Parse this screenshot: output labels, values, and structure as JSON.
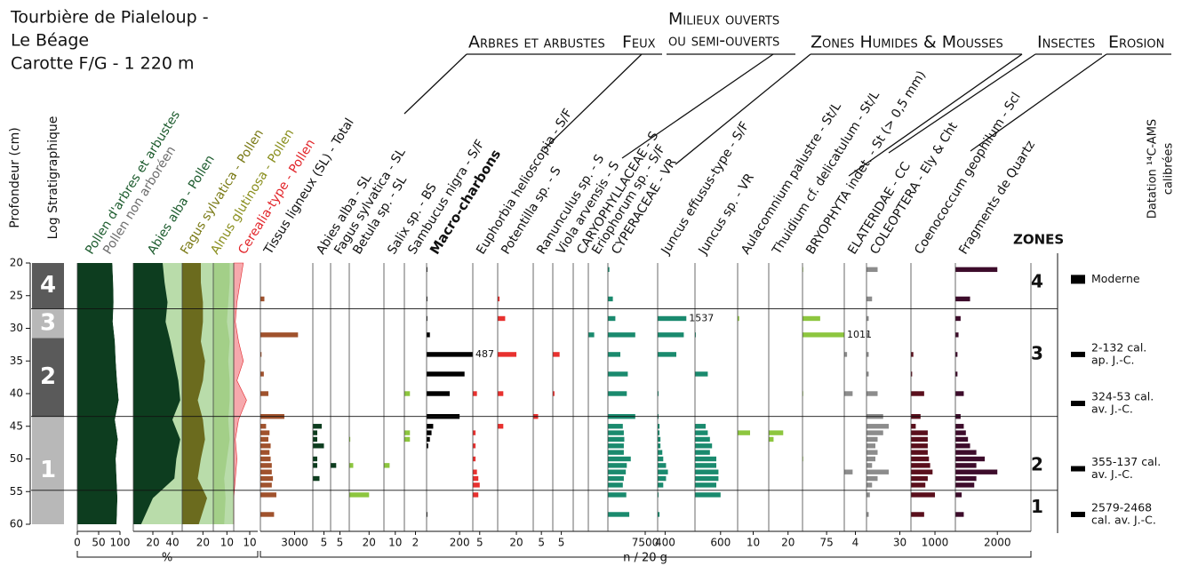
{
  "header": {
    "title": [
      "Tourbière de Pialeloup -",
      "Le Béage",
      "Carotte F/G - 1 220 m"
    ]
  },
  "groups": [
    [
      "Arbres et arbustes"
    ],
    [
      "Feux"
    ],
    [
      "Milieux ouverts",
      "ou semi-ouverts"
    ],
    [
      "Zones Humides & Mousses"
    ],
    [
      "Insectes"
    ],
    [
      "Erosion"
    ]
  ],
  "depth_axis": {
    "label": "Profondeur (cm)",
    "ylim": [
      20,
      60
    ],
    "yticks": [
      20,
      25,
      30,
      35,
      40,
      45,
      50,
      55,
      60
    ]
  },
  "log": {
    "label": "Log Stratigraphique",
    "units": [
      {
        "label": "4",
        "top": 20,
        "bottom": 27,
        "color": "#5a5a5a"
      },
      {
        "label": "3",
        "top": 27,
        "bottom": 31.5,
        "color": "#b8b8b8"
      },
      {
        "label": "2",
        "top": 31.5,
        "bottom": 43.5,
        "color": "#5a5a5a"
      },
      {
        "label": "1",
        "top": 43.5,
        "bottom": 60,
        "color": "#b8b8b8"
      }
    ]
  },
  "x_units": {
    "percent": "%",
    "counts": "n / 20 g"
  },
  "zones": {
    "label": "ZONES",
    "boundaries": [
      27,
      43.5,
      54.8
    ],
    "items": [
      {
        "label": "4",
        "depth": 23
      },
      {
        "label": "3",
        "depth": 34
      },
      {
        "label": "2",
        "depth": 51
      },
      {
        "label": "1",
        "depth": 57.5
      }
    ]
  },
  "dating": {
    "label": [
      "Datation ¹⁴C-AMS",
      "calibrées"
    ],
    "items": [
      {
        "depth": 22.5,
        "label": [
          "Moderne"
        ]
      },
      {
        "depth": 34,
        "label": [
          "2-132 cal.",
          "ap. J.-C."
        ]
      },
      {
        "depth": 41.5,
        "label": [
          "324-53 cal.",
          "av. J.-C."
        ]
      },
      {
        "depth": 51.5,
        "label": [
          "355-137 cal.",
          "av. J.-C."
        ]
      },
      {
        "depth": 58.5,
        "label": [
          "2579-2468",
          "cal. av. J.-C."
        ]
      }
    ]
  },
  "sample_depths": [
    21,
    25.5,
    28.5,
    31,
    34,
    37,
    40,
    43.5,
    45,
    46,
    47,
    48,
    49,
    50,
    51,
    52,
    53,
    54,
    55.5,
    58.5
  ],
  "chart_data": [
    {
      "type": "area",
      "stacked": true,
      "xlim": [
        0,
        100
      ],
      "xticks": [
        0,
        50,
        100
      ],
      "y": [
        20,
        23,
        26,
        29,
        32,
        35,
        38,
        41,
        44,
        47,
        50,
        53,
        56,
        60
      ],
      "series": [
        {
          "name": "Pollen d'arbres et arbustes",
          "color": "#0d3d1f",
          "label_color": "#1d5c2e",
          "values": [
            82,
            84,
            85,
            83,
            88,
            90,
            93,
            97,
            88,
            95,
            90,
            92,
            94,
            92
          ]
        },
        {
          "name": "Pollen non arboréen",
          "color": "#ffffff",
          "label_color": "#6d6d6d",
          "values": [
            18,
            16,
            15,
            17,
            12,
            10,
            7,
            3,
            12,
            5,
            10,
            8,
            6,
            8
          ]
        }
      ]
    },
    {
      "type": "area",
      "xlim": [
        0,
        50
      ],
      "xticks": [
        20,
        40
      ],
      "background": "#b9dcaa",
      "y": [
        20,
        23,
        26,
        29,
        32,
        35,
        38,
        41,
        44,
        47,
        50,
        53,
        56,
        60
      ],
      "series": [
        {
          "name": "Abies alba - Pollen",
          "color": "#0d3d1f",
          "label_color": "#1d5c2e",
          "values": [
            30,
            32,
            35,
            33,
            38,
            42,
            46,
            48,
            40,
            48,
            44,
            42,
            20,
            8
          ]
        }
      ]
    },
    {
      "type": "area",
      "xlim": [
        0,
        30
      ],
      "xticks": [
        20
      ],
      "background": "#b9dcaa",
      "y": [
        20,
        23,
        26,
        29,
        32,
        35,
        38,
        41,
        44,
        47,
        50,
        53,
        56,
        60
      ],
      "series": [
        {
          "name": "Fagus sylvatica - Pollen",
          "color": "#6b6b1e",
          "label_color": "#7a7a16",
          "values": [
            18,
            18,
            20,
            20,
            18,
            22,
            20,
            15,
            20,
            22,
            18,
            15,
            24,
            16
          ]
        }
      ]
    },
    {
      "type": "area",
      "xlim": [
        0,
        15
      ],
      "xticks": [
        10
      ],
      "background": "#b9dcaa",
      "y": [
        20,
        23,
        26,
        29,
        32,
        35,
        38,
        41,
        44,
        47,
        50,
        53,
        56,
        60
      ],
      "series": [
        {
          "name": "Alnus glutinosa - Pollen",
          "color": "#a3cf88",
          "label_color": "#8a8f1e",
          "values": [
            12,
            12,
            11,
            10,
            12,
            11,
            12,
            12,
            11,
            12,
            10,
            8,
            9,
            8
          ]
        }
      ]
    },
    {
      "type": "area",
      "xlim": [
        0,
        15
      ],
      "xticks": [
        10
      ],
      "y": [
        20,
        23,
        26,
        29,
        32,
        35,
        38,
        41,
        44,
        47,
        50,
        53,
        56,
        60
      ],
      "series": [
        {
          "name": "Cerealia-type - Pollen",
          "color": "#f6a9ad",
          "label_color": "#e2262b",
          "values": [
            6,
            4,
            2,
            1,
            3,
            6,
            2,
            8,
            3,
            1,
            2,
            1,
            0,
            0
          ]
        }
      ]
    },
    {
      "type": "bar",
      "title": "Tissus ligneux (SL) - Total",
      "color": "#a0522d",
      "xlim": [
        0,
        4600
      ],
      "xticks": [
        3000
      ],
      "values": [
        0,
        350,
        0,
        3300,
        100,
        300,
        700,
        2100,
        500,
        800,
        700,
        900,
        800,
        900,
        1000,
        1000,
        1100,
        1000,
        1400,
        1200
      ]
    },
    {
      "type": "bar",
      "title": "Abies alba - SL",
      "color": "#0d3d1f",
      "xlim": [
        0,
        8
      ],
      "xticks": [
        5
      ],
      "values": [
        0,
        0,
        0,
        0,
        0,
        0,
        0,
        0,
        4,
        2,
        2,
        5,
        0,
        2,
        2,
        0,
        3,
        0,
        0,
        0
      ]
    },
    {
      "type": "bar",
      "title": "Fagus sylvatica - SL",
      "color": "#0d3d1f",
      "xlim": [
        0,
        10
      ],
      "xticks": [
        5
      ],
      "values": [
        0,
        0,
        0,
        0,
        0,
        0,
        0,
        0,
        0,
        0,
        0,
        0,
        0,
        0,
        3,
        0,
        0,
        0,
        0,
        0
      ]
    },
    {
      "type": "bar",
      "title": "Betula sp. - SL",
      "color": "#8dc63f",
      "xlim": [
        0,
        35
      ],
      "xticks": [
        20
      ],
      "values": [
        0,
        0,
        0,
        0,
        0,
        0,
        0,
        0,
        0,
        0,
        1,
        0,
        0,
        0,
        4,
        0,
        0,
        0,
        20,
        0
      ]
    },
    {
      "type": "bar",
      "title": "Salix sp. - BS",
      "color": "#8dc63f",
      "xlim": [
        0,
        18
      ],
      "xticks": [
        10
      ],
      "values": [
        0,
        0,
        0,
        0,
        0,
        0,
        0,
        0,
        0,
        0,
        0,
        0,
        0,
        0,
        5,
        0,
        0,
        0,
        0,
        0
      ]
    },
    {
      "type": "bar",
      "title": "Sambucus nigra - S/F",
      "color": "#8dc63f",
      "xlim": [
        0,
        4
      ],
      "xticks": [
        2
      ],
      "values": [
        0,
        0,
        0,
        0,
        0,
        0,
        1,
        0,
        0,
        1,
        1,
        0,
        0,
        0,
        0,
        0,
        0,
        0,
        0,
        0
      ]
    },
    {
      "type": "bar",
      "title": "Macro-charbons",
      "bold": true,
      "color": "#000000",
      "xlim": [
        0,
        280
      ],
      "xticks": [
        200
      ],
      "label_points": [
        4
      ],
      "values": [
        5,
        5,
        5,
        20,
        487,
        230,
        140,
        200,
        40,
        30,
        20,
        10,
        0,
        0,
        0,
        0,
        0,
        0,
        0,
        5
      ]
    },
    {
      "type": "bar",
      "title": "Euphorbia helioscopia - S/F",
      "color": "#e8312f",
      "xlim": [
        0,
        18
      ],
      "xticks": [
        5
      ],
      "values": [
        0,
        0,
        0,
        0,
        0,
        0,
        3,
        0,
        0,
        2,
        0,
        2,
        0,
        2,
        0,
        3,
        4,
        5,
        4,
        0
      ]
    },
    {
      "type": "bar",
      "title": "Potentilla sp. - S",
      "color": "#e8312f",
      "xlim": [
        0,
        38
      ],
      "xticks": [
        20
      ],
      "values": [
        0,
        2,
        8,
        0,
        20,
        0,
        6,
        0,
        6,
        0,
        0,
        0,
        0,
        0,
        0,
        0,
        0,
        0,
        0,
        0
      ]
    },
    {
      "type": "bar",
      "title": "Ranunculus sp. - S",
      "color": "#e8312f",
      "xlim": [
        0,
        12
      ],
      "xticks": [
        5
      ],
      "values": [
        0,
        0,
        0,
        0,
        0,
        0,
        0,
        3,
        0,
        0,
        0,
        0,
        0,
        0,
        0,
        0,
        0,
        0,
        0,
        0
      ]
    },
    {
      "type": "bar",
      "title": "Viola arvensis - S",
      "color": "#e8312f",
      "xlim": [
        0,
        12
      ],
      "xticks": [
        5
      ],
      "values": [
        0,
        0,
        0,
        0,
        4,
        0,
        1,
        0,
        0,
        0,
        0,
        0,
        0,
        0,
        0,
        0,
        0,
        0,
        0,
        0
      ]
    },
    {
      "type": "bar",
      "title": "CARYOPHYLLACEAE - S",
      "color": "#1a8a6e",
      "xlim": [
        0,
        10
      ],
      "values": [
        0,
        0,
        0,
        0,
        0,
        0,
        0,
        0,
        0,
        0,
        0,
        0,
        0,
        0,
        0,
        0,
        0,
        0,
        0,
        0
      ]
    },
    {
      "type": "bar",
      "title": "Eriophorum sp. - S/F",
      "color": "#1a8a6e",
      "xlim": [
        0,
        10
      ],
      "values": [
        0,
        0,
        0,
        3,
        0,
        0,
        0,
        0,
        0,
        0,
        0,
        0,
        0,
        0,
        0,
        0,
        0,
        0,
        0,
        0
      ]
    },
    {
      "type": "bar",
      "title": "CYPERACEAE - VR",
      "color": "#1a8a6e",
      "xlim": [
        0,
        10000
      ],
      "xticks": [
        7500
      ],
      "values": [
        300,
        1000,
        1500,
        5500,
        2500,
        4000,
        3800,
        5500,
        3000,
        3200,
        3300,
        3200,
        3200,
        4600,
        3800,
        3600,
        3200,
        3000,
        3700,
        4300
      ]
    },
    {
      "type": "bar",
      "title": "Juncus effusus-type - S/F",
      "color": "#1a8a6e",
      "xlim": [
        0,
        2000
      ],
      "xticks": [
        400
      ],
      "label_points": [
        2
      ],
      "values": [
        0,
        0,
        1537,
        1400,
        1000,
        0,
        50,
        50,
        100,
        100,
        150,
        150,
        250,
        300,
        450,
        550,
        450,
        300,
        50,
        100
      ]
    },
    {
      "type": "bar",
      "title": "Juncus sp. - VR",
      "color": "#1a8a6e",
      "xlim": [
        0,
        1000
      ],
      "xticks": [
        600
      ],
      "values": [
        0,
        0,
        0,
        20,
        0,
        300,
        0,
        0,
        250,
        300,
        350,
        400,
        350,
        500,
        500,
        550,
        550,
        500,
        600,
        0
      ]
    },
    {
      "type": "bar",
      "title": "Aulacomnium palustre - St/L",
      "color": "#8dc63f",
      "xlim": [
        0,
        20
      ],
      "xticks": [
        10
      ],
      "values": [
        0,
        0,
        1,
        0,
        0,
        0,
        0,
        0,
        0,
        8,
        0,
        0,
        0,
        0,
        0,
        0,
        0,
        0,
        0,
        0
      ]
    },
    {
      "type": "bar",
      "title": "Thuidium cf. delicatulum - St/L",
      "color": "#8dc63f",
      "xlim": [
        0,
        35
      ],
      "xticks": [
        20
      ],
      "values": [
        0,
        0,
        0,
        0,
        0,
        0,
        0,
        0,
        0,
        15,
        5,
        0,
        0,
        0,
        0,
        0,
        0,
        0,
        0,
        0
      ]
    },
    {
      "type": "bar",
      "title": "BRYOPHYTA indet. - St (> 0,5 mm)",
      "color": "#8dc63f",
      "xlim": [
        0,
        130
      ],
      "xticks": [
        75
      ],
      "label_points": [
        3
      ],
      "values": [
        2,
        0,
        55,
        1011,
        0,
        0,
        2,
        0,
        0,
        0,
        0,
        0,
        0,
        2,
        0,
        0,
        0,
        0,
        0,
        0
      ]
    },
    {
      "type": "bar",
      "title": "ELATERIDAE - CC",
      "color": "#8c8c8c",
      "xlim": [
        0,
        8
      ],
      "xticks": [
        4
      ],
      "values": [
        0,
        0,
        0,
        0,
        1,
        0,
        3,
        0,
        0,
        0,
        0,
        0,
        0,
        0,
        0,
        3,
        0,
        0,
        0,
        0
      ]
    },
    {
      "type": "bar",
      "title": "COLEOPTERA - Ely & Cht",
      "color": "#8c8c8c",
      "xlim": [
        0,
        40
      ],
      "xticks": [
        30
      ],
      "values": [
        10,
        5,
        2,
        2,
        2,
        2,
        10,
        15,
        20,
        15,
        10,
        8,
        10,
        8,
        5,
        20,
        10,
        5,
        3,
        2
      ]
    },
    {
      "type": "bar",
      "title": "Coenococcum geophilum - Scl",
      "color": "#5a0f1c",
      "xlim": [
        0,
        1850
      ],
      "xticks": [
        1000
      ],
      "values": [
        0,
        0,
        0,
        0,
        100,
        50,
        550,
        400,
        200,
        700,
        700,
        700,
        700,
        750,
        800,
        900,
        700,
        600,
        1000,
        550
      ]
    },
    {
      "type": "bar",
      "title": "Fragments de Quartz",
      "color": "#3d0c2b",
      "xlim": [
        0,
        3600
      ],
      "xticks": [
        2000
      ],
      "values": [
        2000,
        700,
        250,
        150,
        100,
        100,
        400,
        250,
        400,
        500,
        600,
        700,
        1000,
        1400,
        1000,
        2000,
        1000,
        900,
        300,
        400
      ]
    }
  ]
}
